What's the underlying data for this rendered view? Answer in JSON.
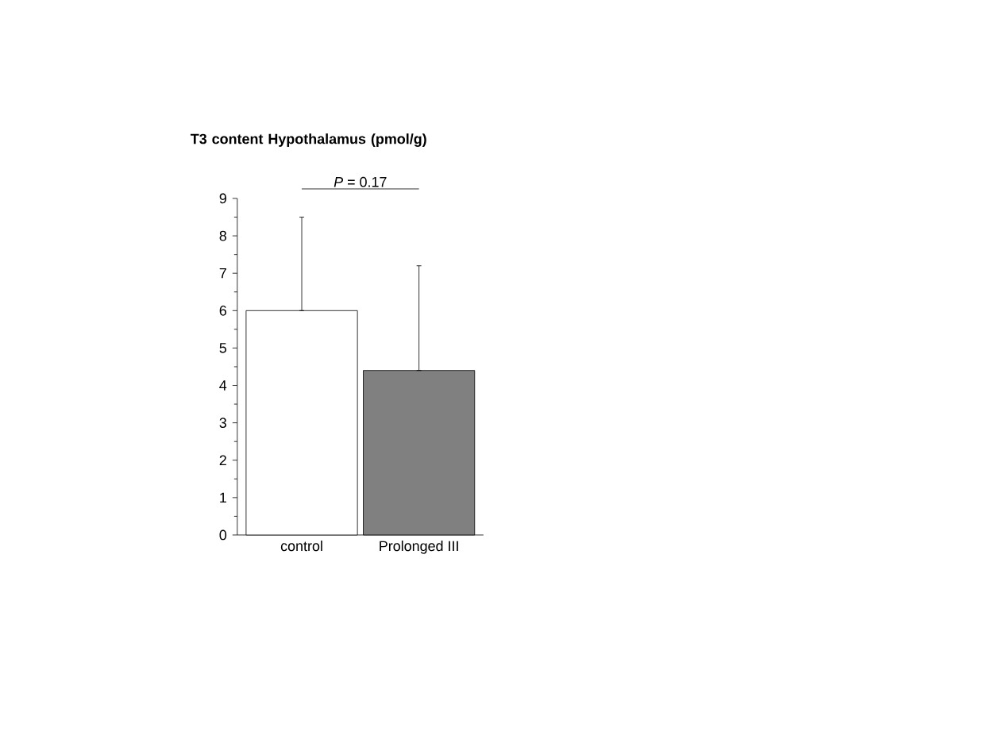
{
  "chart_data": {
    "type": "bar",
    "title": "T3 content Hypothalamus (pmol/g)",
    "categories": [
      "control",
      "Prolonged III"
    ],
    "values": [
      6.0,
      4.4
    ],
    "colors": [
      "#ffffff",
      "#808080"
    ],
    "errors": [
      [
        6.0,
        8.5
      ],
      [
        4.4,
        7.2
      ]
    ],
    "ylim": [
      0,
      9
    ],
    "yticks": [
      0,
      1,
      2,
      3,
      4,
      5,
      6,
      7,
      8,
      9
    ],
    "annotations": [
      "*P* = 0.17"
    ]
  }
}
